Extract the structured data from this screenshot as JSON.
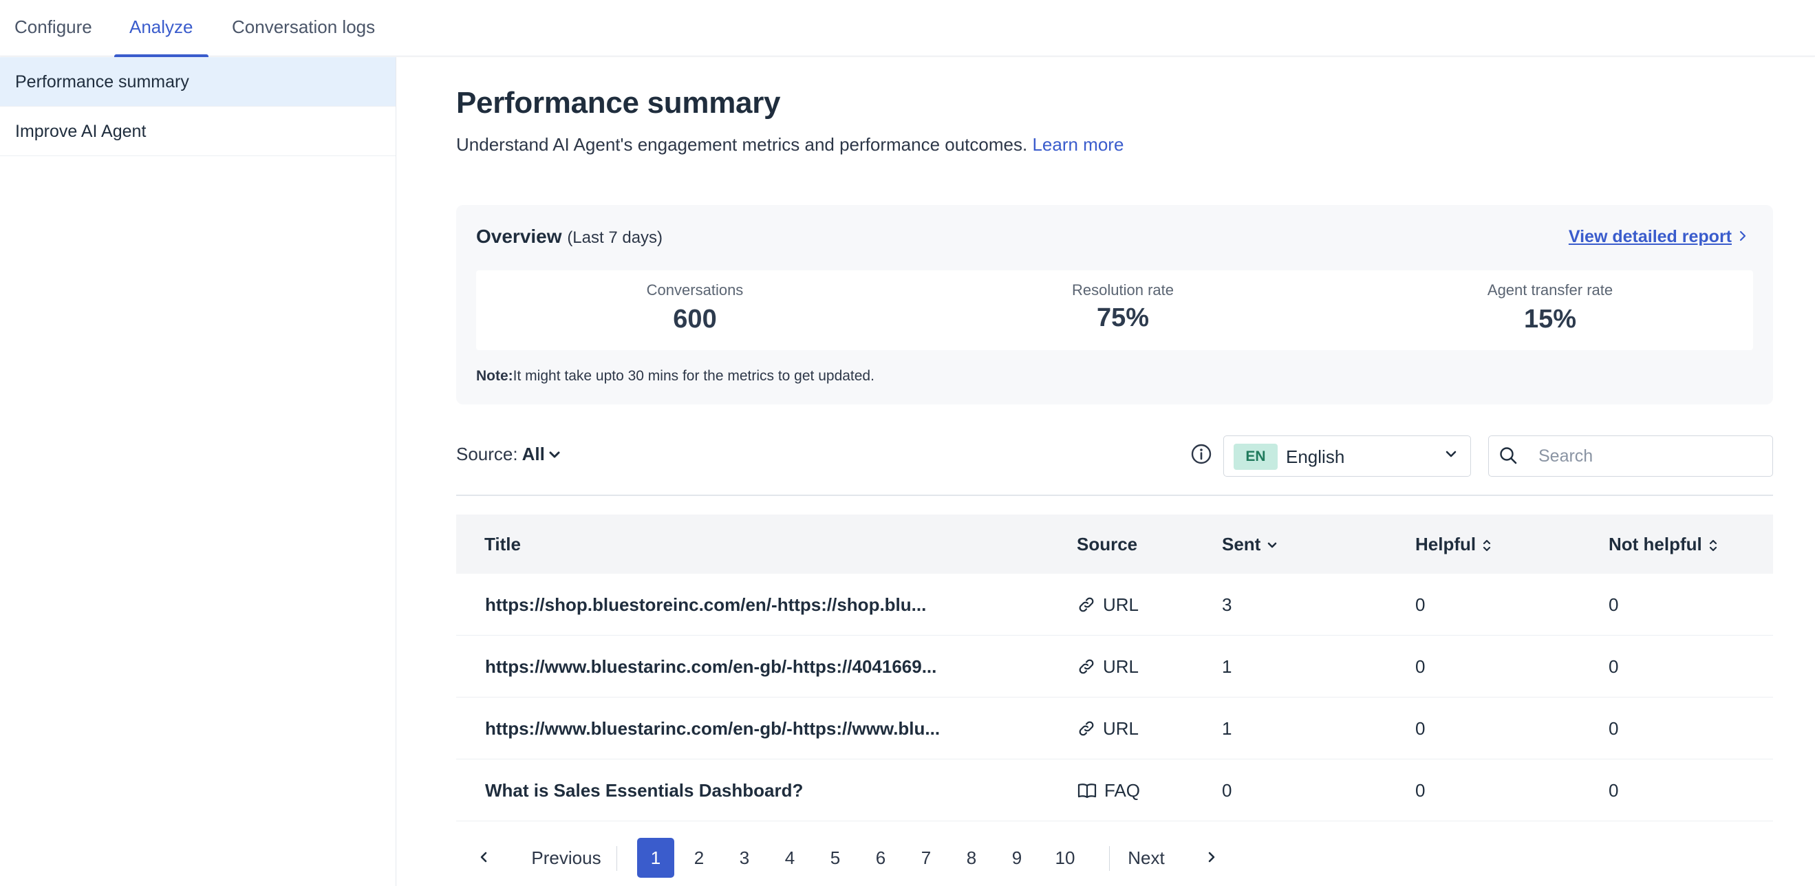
{
  "tabs": [
    {
      "label": "Configure",
      "active": false
    },
    {
      "label": "Analyze",
      "active": true
    },
    {
      "label": "Conversation logs",
      "active": false
    }
  ],
  "sidebar": {
    "items": [
      {
        "label": "Performance summary",
        "active": true
      },
      {
        "label": "Improve AI Agent",
        "active": false
      }
    ]
  },
  "header": {
    "title": "Performance summary",
    "description": "Understand AI Agent's engagement metrics and performance outcomes.",
    "learn_more": "Learn more"
  },
  "overview": {
    "title": "Overview",
    "period": "(Last 7 days)",
    "report_link": "View detailed report",
    "metrics": [
      {
        "label": "Conversations",
        "value": "600"
      },
      {
        "label": "Resolution rate",
        "value": "75%"
      },
      {
        "label": "Agent transfer rate",
        "value": "15%"
      }
    ],
    "note_label": "Note:",
    "note_text": "It might take upto 30 mins for the metrics to get updated."
  },
  "filters": {
    "source_label": "Source:",
    "source_value": "All",
    "language_code": "EN",
    "language_name": "English",
    "search_placeholder": "Search"
  },
  "table": {
    "columns": [
      "Title",
      "Source",
      "Sent",
      "Helpful",
      "Not helpful"
    ],
    "rows": [
      {
        "title": "https://shop.bluestoreinc.com/en/-https://shop.blu...",
        "source": "URL",
        "source_icon": "link-icon",
        "sent": "3",
        "helpful": "0",
        "not_helpful": "0"
      },
      {
        "title": "https://www.bluestarinc.com/en-gb/-https://4041669...",
        "source": "URL",
        "source_icon": "link-icon",
        "sent": "1",
        "helpful": "0",
        "not_helpful": "0"
      },
      {
        "title": "https://www.bluestarinc.com/en-gb/-https://www.blu...",
        "source": "URL",
        "source_icon": "link-icon",
        "sent": "1",
        "helpful": "0",
        "not_helpful": "0"
      },
      {
        "title": "What is Sales Essentials Dashboard?",
        "source": "FAQ",
        "source_icon": "book-icon",
        "sent": "0",
        "helpful": "0",
        "not_helpful": "0"
      }
    ]
  },
  "pagination": {
    "previous": "Previous",
    "next": "Next",
    "pages": [
      "1",
      "2",
      "3",
      "4",
      "5",
      "6",
      "7",
      "8",
      "9",
      "10"
    ],
    "current": "1"
  },
  "colors": {
    "accent": "#3a5ccc",
    "sidebar_active": "#e5f0fc",
    "lang_badge_bg": "#c6ebe0",
    "lang_badge_text": "#1f7a5c"
  }
}
